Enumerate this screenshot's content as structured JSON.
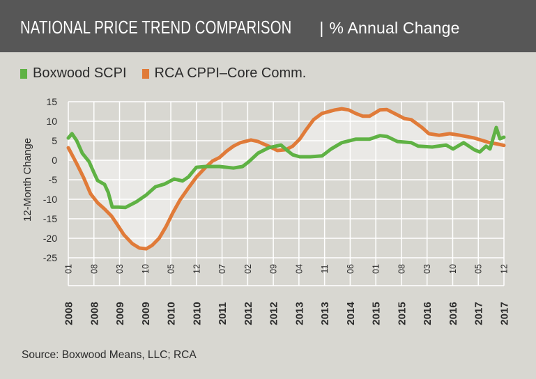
{
  "header": {
    "title_main": "NATIONAL PRICE TREND COMPARISON",
    "separator": "|",
    "title_sub": "% Annual Change"
  },
  "colors": {
    "header_bg": "#575757",
    "background": "#d8d7d1",
    "shade": "#eae9e6",
    "grid": "#ffffff",
    "boxwood": "#5fb244",
    "rca": "#e07b39"
  },
  "source": "Source: Boxwood Means, LLC; RCA",
  "chart_data": {
    "type": "line",
    "title": "NATIONAL PRICE TREND COMPARISON | % Annual Change",
    "xlabel": "",
    "ylabel": "12-Month Change",
    "ylim": [
      -25,
      15
    ],
    "yticks": [
      15,
      10,
      5,
      0,
      -5,
      -10,
      -15,
      -20,
      -25
    ],
    "ytick_labels": [
      "15",
      "10",
      "5",
      "0",
      "-5",
      "-10",
      "-15",
      "-20",
      "-25"
    ],
    "x_range_months": [
      0,
      119
    ],
    "x_start": "2008-01",
    "xticks": [
      {
        "month": "01",
        "year": "2008"
      },
      {
        "month": "08",
        "year": "2008"
      },
      {
        "month": "03",
        "year": "2009"
      },
      {
        "month": "10",
        "year": "2009"
      },
      {
        "month": "05",
        "year": "2010"
      },
      {
        "month": "12",
        "year": "2010"
      },
      {
        "month": "07",
        "year": "2011"
      },
      {
        "month": "02",
        "year": "2012"
      },
      {
        "month": "09",
        "year": "2012"
      },
      {
        "month": "04",
        "year": "2013"
      },
      {
        "month": "11",
        "year": "2013"
      },
      {
        "month": "06",
        "year": "2014"
      },
      {
        "month": "01",
        "year": "2015"
      },
      {
        "month": "08",
        "year": "2015"
      },
      {
        "month": "03",
        "year": "2016"
      },
      {
        "month": "10",
        "year": "2016"
      },
      {
        "month": "05",
        "year": "2017"
      },
      {
        "month": "12",
        "year": "2017"
      }
    ],
    "grid": true,
    "legend_position": "top-left",
    "series": [
      {
        "name": "Boxwood SCPI",
        "color": "#5fb244",
        "points": [
          [
            0,
            5.7
          ],
          [
            1,
            6.8
          ],
          [
            2.3,
            5.0
          ],
          [
            3.8,
            1.8
          ],
          [
            5.7,
            -0.4
          ],
          [
            7.0,
            -3.2
          ],
          [
            8.0,
            -5.2
          ],
          [
            9.9,
            -6.2
          ],
          [
            10.9,
            -8.2
          ],
          [
            12.0,
            -12.0
          ],
          [
            13.7,
            -12.0
          ],
          [
            15.6,
            -12.1
          ],
          [
            18.5,
            -10.7
          ],
          [
            21.3,
            -8.9
          ],
          [
            23.8,
            -6.8
          ],
          [
            26.3,
            -6.1
          ],
          [
            28.9,
            -4.8
          ],
          [
            31.2,
            -5.3
          ],
          [
            32.8,
            -4.3
          ],
          [
            35.0,
            -1.8
          ],
          [
            37.5,
            -1.6
          ],
          [
            41.3,
            -1.6
          ],
          [
            45.1,
            -2.0
          ],
          [
            47.6,
            -1.6
          ],
          [
            49.3,
            -0.4
          ],
          [
            51.8,
            1.8
          ],
          [
            54.7,
            3.2
          ],
          [
            58.1,
            3.9
          ],
          [
            59.8,
            2.5
          ],
          [
            61.3,
            1.4
          ],
          [
            63.2,
            0.9
          ],
          [
            66.1,
            0.9
          ],
          [
            69.3,
            1.1
          ],
          [
            71.8,
            2.9
          ],
          [
            74.7,
            4.5
          ],
          [
            78.5,
            5.4
          ],
          [
            82.3,
            5.4
          ],
          [
            85.1,
            6.3
          ],
          [
            87.0,
            6.1
          ],
          [
            89.9,
            4.8
          ],
          [
            93.7,
            4.5
          ],
          [
            95.6,
            3.6
          ],
          [
            99.4,
            3.4
          ],
          [
            103.2,
            3.9
          ],
          [
            105.1,
            2.9
          ],
          [
            108.0,
            4.5
          ],
          [
            110.9,
            2.7
          ],
          [
            112.4,
            2.1
          ],
          [
            114.1,
            3.6
          ],
          [
            115.2,
            2.9
          ],
          [
            116.9,
            8.4
          ],
          [
            117.9,
            5.5
          ],
          [
            119.0,
            5.9
          ]
        ]
      },
      {
        "name": "RCA CPPI–Core Comm.",
        "color": "#e07b39",
        "points": [
          [
            0,
            3.2
          ],
          [
            2.3,
            -0.9
          ],
          [
            4.2,
            -4.5
          ],
          [
            6.1,
            -8.6
          ],
          [
            8.0,
            -10.9
          ],
          [
            9.9,
            -12.5
          ],
          [
            11.8,
            -14.3
          ],
          [
            13.3,
            -16.4
          ],
          [
            15.2,
            -19.1
          ],
          [
            17.5,
            -21.4
          ],
          [
            19.4,
            -22.5
          ],
          [
            21.3,
            -22.7
          ],
          [
            22.9,
            -21.8
          ],
          [
            24.8,
            -20.0
          ],
          [
            26.7,
            -17.0
          ],
          [
            28.6,
            -13.4
          ],
          [
            30.5,
            -10.2
          ],
          [
            32.8,
            -7.1
          ],
          [
            35.0,
            -4.3
          ],
          [
            37.5,
            -1.8
          ],
          [
            39.4,
            -0.2
          ],
          [
            41.3,
            0.7
          ],
          [
            43.2,
            2.3
          ],
          [
            45.1,
            3.6
          ],
          [
            47.0,
            4.5
          ],
          [
            49.9,
            5.2
          ],
          [
            51.8,
            4.8
          ],
          [
            54.7,
            3.6
          ],
          [
            57.1,
            2.5
          ],
          [
            59.4,
            2.7
          ],
          [
            61.3,
            3.6
          ],
          [
            63.2,
            5.4
          ],
          [
            65.1,
            8.0
          ],
          [
            67.0,
            10.4
          ],
          [
            69.3,
            12.0
          ],
          [
            72.8,
            12.9
          ],
          [
            74.7,
            13.2
          ],
          [
            76.6,
            12.9
          ],
          [
            78.5,
            12.0
          ],
          [
            80.4,
            11.3
          ],
          [
            82.3,
            11.3
          ],
          [
            85.1,
            12.9
          ],
          [
            87.0,
            13.0
          ],
          [
            89.9,
            11.6
          ],
          [
            91.8,
            10.7
          ],
          [
            93.7,
            10.4
          ],
          [
            96.6,
            8.4
          ],
          [
            98.5,
            6.8
          ],
          [
            101.3,
            6.4
          ],
          [
            104.2,
            6.8
          ],
          [
            107.0,
            6.4
          ],
          [
            110.9,
            5.7
          ],
          [
            114.7,
            4.6
          ],
          [
            117.5,
            4.1
          ],
          [
            119.0,
            3.8
          ]
        ]
      }
    ]
  }
}
